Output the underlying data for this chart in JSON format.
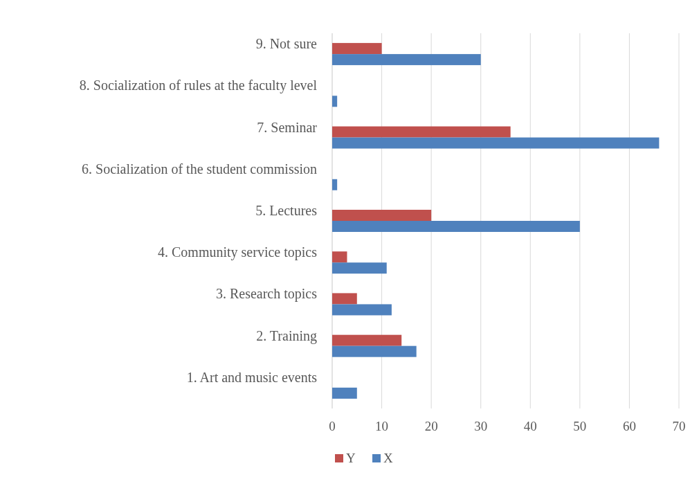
{
  "chart_data": {
    "type": "bar",
    "orientation": "horizontal",
    "categories": [
      "9. Not sure",
      "8. Socialization of rules at the faculty level",
      "7. Seminar",
      "6. Socialization of the student commission",
      "5. Lectures",
      "4. Community service topics",
      "3. Research topics",
      "2. Training",
      "1. Art and music events"
    ],
    "series": [
      {
        "name": "Y",
        "color": "#c0504d",
        "values": [
          10,
          0,
          36,
          0,
          20,
          3,
          5,
          14,
          0
        ]
      },
      {
        "name": "X",
        "color": "#4f81bd",
        "values": [
          30,
          1,
          66,
          1,
          50,
          11,
          12,
          17,
          5
        ]
      }
    ],
    "xlim": [
      0,
      70
    ],
    "xticks": [
      0,
      10,
      20,
      30,
      40,
      50,
      60,
      70
    ],
    "grid": "x",
    "legend": "bottom"
  }
}
